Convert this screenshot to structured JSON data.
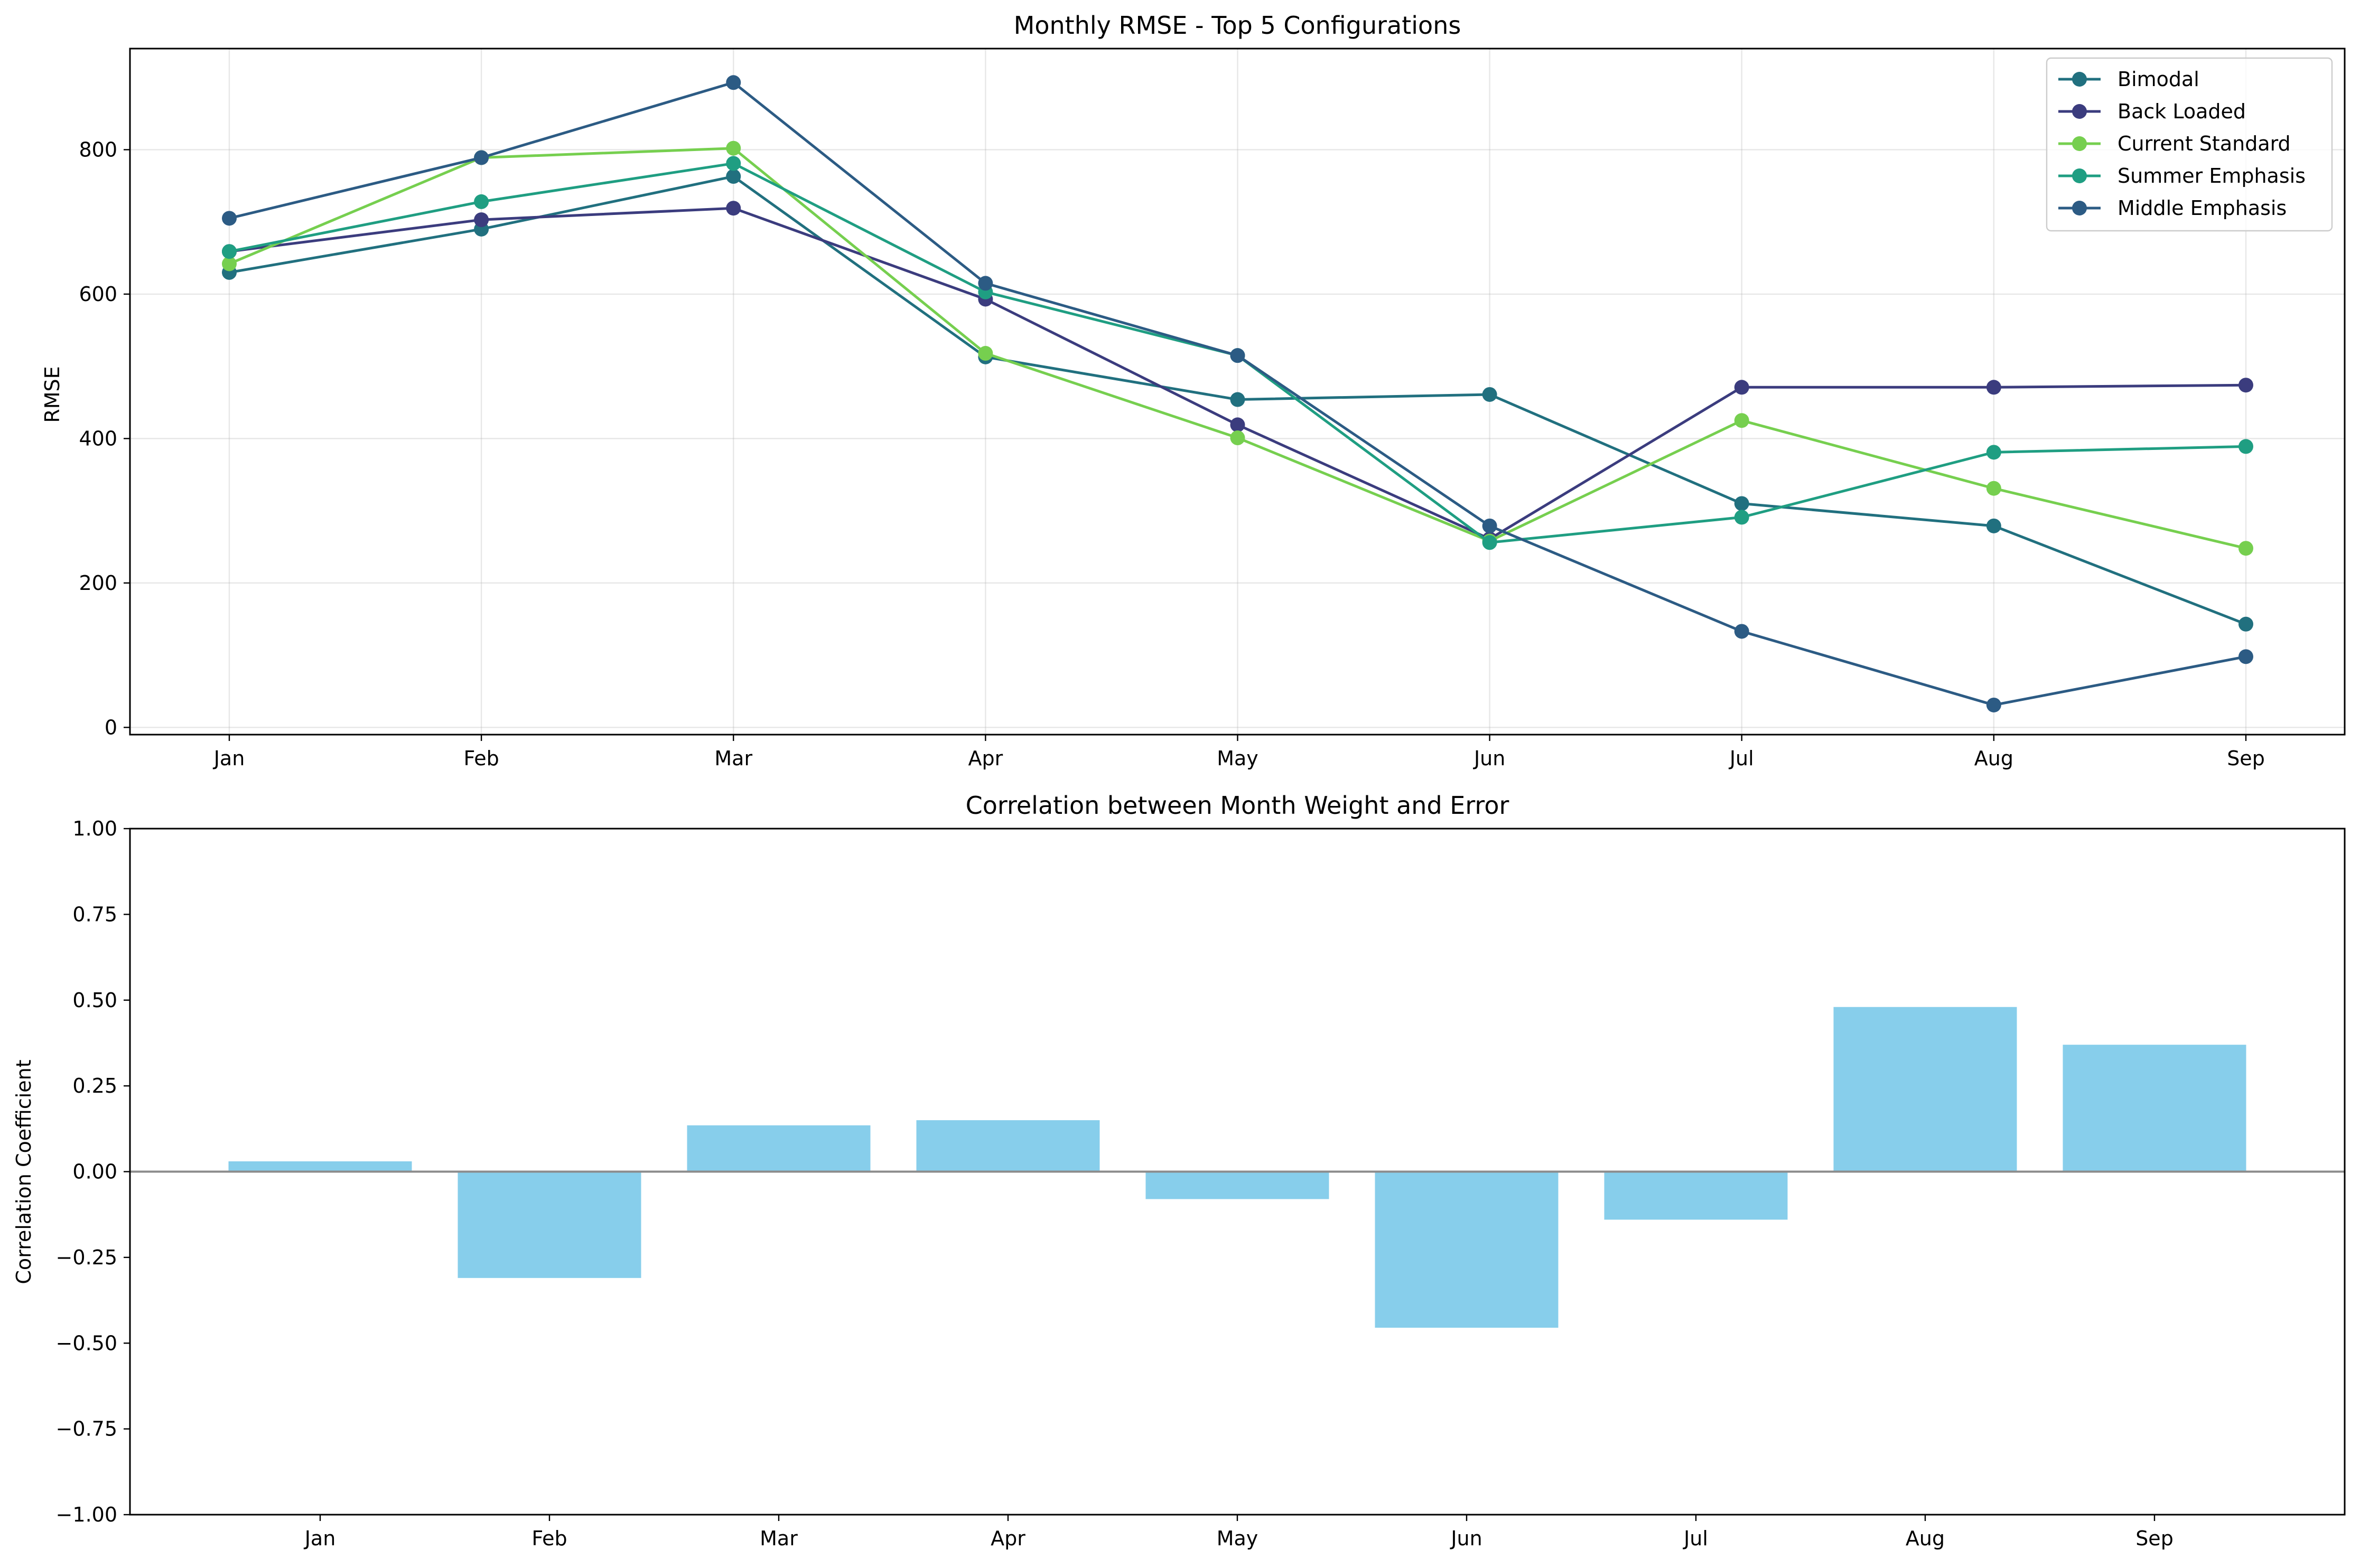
{
  "chart_data": [
    {
      "type": "line",
      "title": "Monthly RMSE - Top 5 Configurations",
      "xlabel": "",
      "ylabel": "RMSE",
      "categories": [
        "Jan",
        "Feb",
        "Mar",
        "Apr",
        "May",
        "Jun",
        "Jul",
        "Aug",
        "Sep"
      ],
      "ylim": [
        -10,
        940
      ],
      "yticks": [
        0,
        200,
        400,
        600,
        800
      ],
      "ytick_labels": [
        "0",
        "200",
        "400",
        "600",
        "800"
      ],
      "grid": true,
      "legend": "top-right",
      "series": [
        {
          "name": "Bimodal",
          "color": "#21707f",
          "values": [
            630,
            690,
            763,
            513,
            454,
            461,
            310,
            279,
            143
          ]
        },
        {
          "name": "Back Loaded",
          "color": "#3b3c7e",
          "values": [
            659,
            703,
            719,
            593,
            419,
            261,
            471,
            471,
            474
          ]
        },
        {
          "name": "Current Standard",
          "color": "#76cf4f",
          "values": [
            642,
            789,
            802,
            518,
            401,
            258,
            425,
            331,
            248
          ]
        },
        {
          "name": "Summer Emphasis",
          "color": "#1f9e82",
          "values": [
            659,
            728,
            781,
            603,
            515,
            256,
            291,
            381,
            389
          ]
        },
        {
          "name": "Middle Emphasis",
          "color": "#2c5b84",
          "values": [
            705,
            789,
            893,
            615,
            515,
            279,
            133,
            31,
            98
          ]
        }
      ]
    },
    {
      "type": "bar",
      "title": "Correlation between Month Weight and Error",
      "xlabel": "",
      "ylabel": "Correlation Coefficient",
      "categories": [
        "Jan",
        "Feb",
        "Mar",
        "Apr",
        "May",
        "Jun",
        "Jul",
        "Aug",
        "Sep"
      ],
      "values": [
        0.03,
        -0.31,
        0.135,
        0.15,
        -0.08,
        -0.455,
        -0.14,
        0.48,
        0.37
      ],
      "ylim": [
        -1.0,
        1.0
      ],
      "yticks": [
        -1.0,
        -0.75,
        -0.5,
        -0.25,
        0.0,
        0.25,
        0.5,
        0.75,
        1.0
      ],
      "ytick_labels": [
        "−1.00",
        "−0.75",
        "−0.50",
        "−0.25",
        "0.00",
        "0.25",
        "0.50",
        "0.75",
        "1.00"
      ],
      "bar_color": "#87ceeb",
      "zero_line_color": "#8c8c8c",
      "grid": false
    }
  ]
}
